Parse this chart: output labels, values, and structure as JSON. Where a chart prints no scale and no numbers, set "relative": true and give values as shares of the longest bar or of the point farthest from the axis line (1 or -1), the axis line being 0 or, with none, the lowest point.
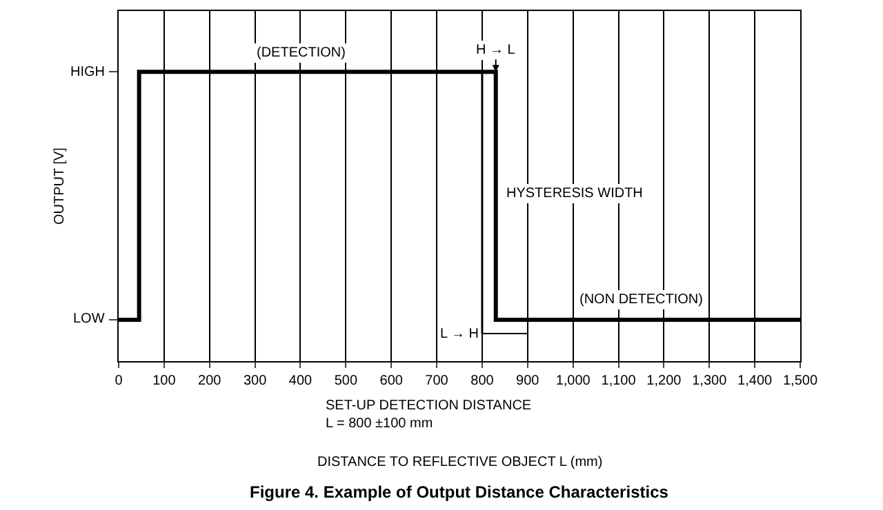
{
  "chart_data": {
    "type": "line",
    "title": "Figure 4. Example of Output Distance Characteristics",
    "xlabel": "DISTANCE TO REFLECTIVE OBJECT L (mm)",
    "ylabel": "OUTPUT [V]",
    "relative": true,
    "series": [
      {
        "color": "#000000",
        "x": [
          0,
          45,
          45,
          830,
          830,
          1500
        ],
        "values": [
          0.143,
          0.143,
          1,
          1,
          0.143,
          0.143
        ]
      },
      {
        "color": "#000000",
        "x": [
          800,
          800
        ],
        "values": [
          0.095,
          1
        ]
      },
      {
        "color": "#000000",
        "x": [
          800,
          900
        ],
        "values": [
          0.095,
          0.095
        ]
      }
    ],
    "xlim": [
      0,
      1500
    ],
    "xticks": [
      0,
      100,
      200,
      300,
      400,
      500,
      600,
      700,
      800,
      900,
      {
        "value": 1000,
        "label": "1,000"
      },
      {
        "value": 1100,
        "label": "1,100"
      },
      {
        "value": 1200,
        "label": "1,200"
      },
      {
        "value": 1300,
        "label": "1,300"
      },
      {
        "value": 1400,
        "label": "1,400"
      },
      {
        "value": 1500,
        "label": "1,500"
      }
    ],
    "grid": "x",
    "marker": "none",
    "line_style": "solid",
    "annotations": [
      {
        "text": "(DETECTION)",
        "x": 400,
        "y": 1
      },
      {
        "text": "H → L",
        "x": 830,
        "y": 1
      },
      {
        "text": "HYSTERESIS WIDTH",
        "x": 830,
        "y": 0.58
      },
      {
        "text": "(NON DETECTION)",
        "x": 1150,
        "y": 0.143
      },
      {
        "text": "L → H",
        "x": 800,
        "y": 0.095
      },
      "SET-UP DETECTION DISTANCE\nL = 800 ±100 mm",
      "HIGH",
      "LOW"
    ]
  }
}
